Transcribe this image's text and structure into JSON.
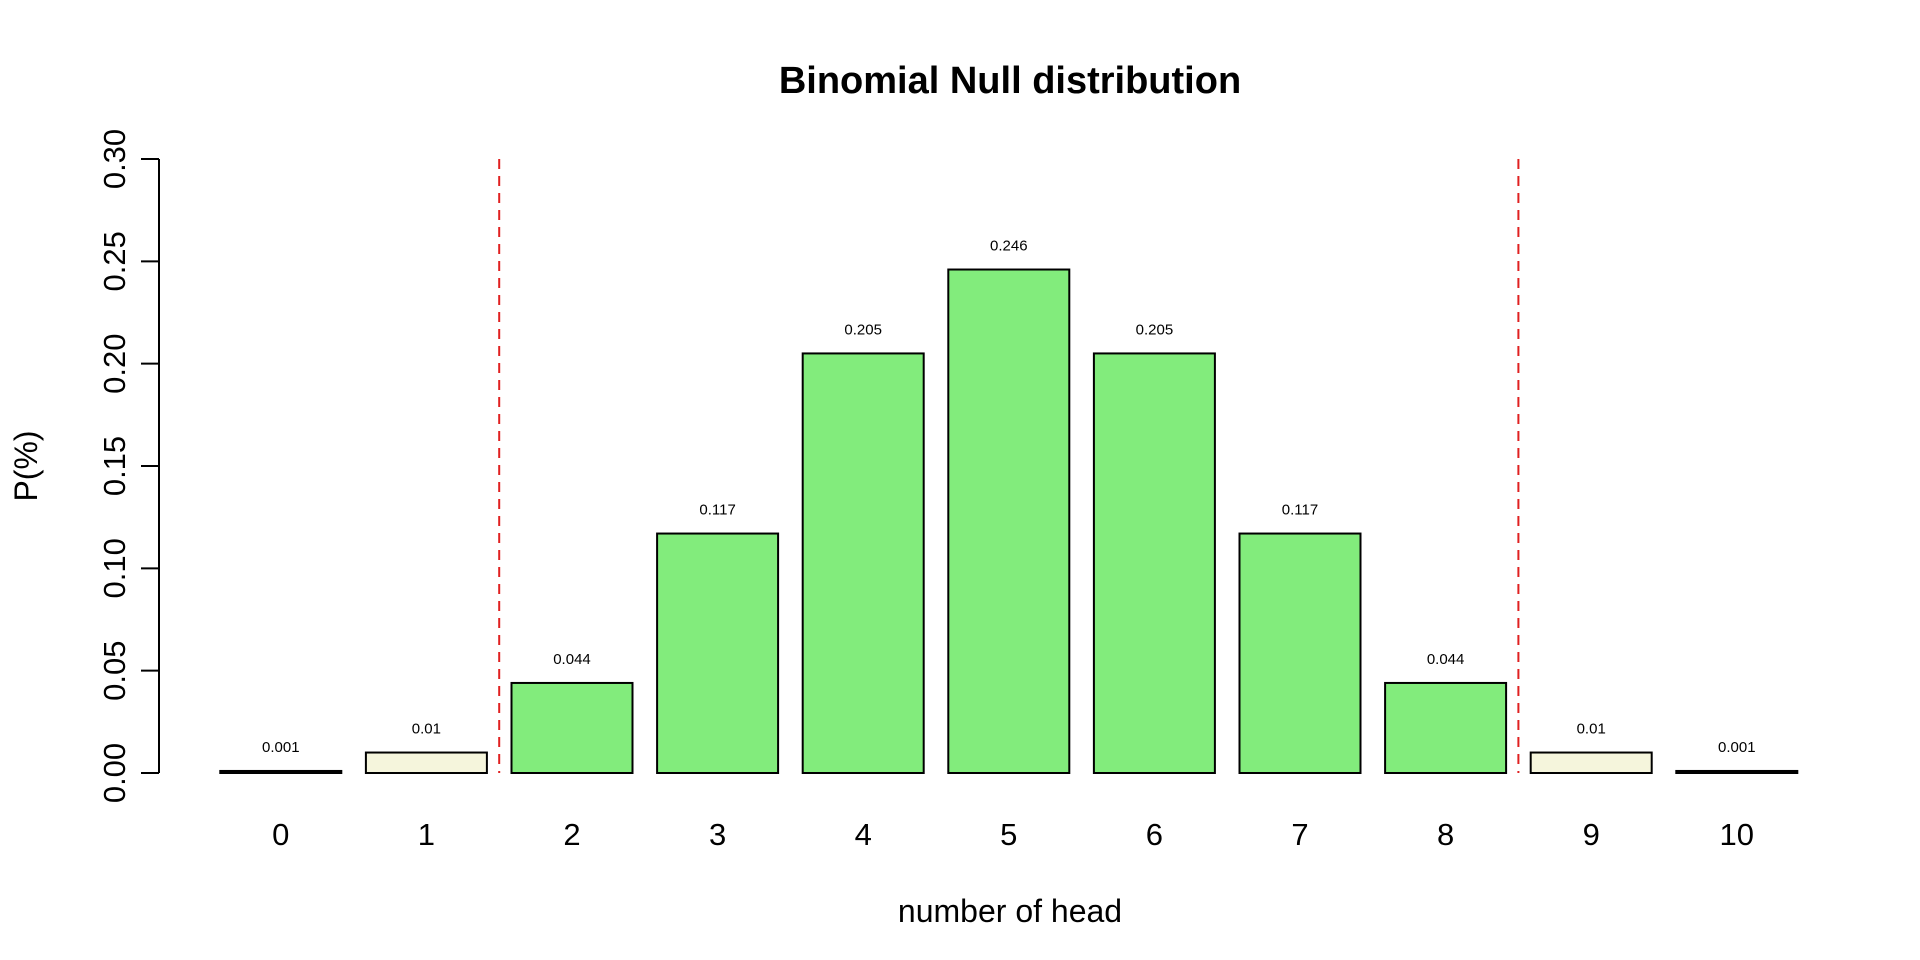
{
  "chart_data": {
    "type": "bar",
    "title": "Binomial Null distribution",
    "xlabel": "number of head",
    "ylabel": "P(%)",
    "categories": [
      "0",
      "1",
      "2",
      "3",
      "4",
      "5",
      "6",
      "7",
      "8",
      "9",
      "10"
    ],
    "values": [
      0.001,
      0.01,
      0.044,
      0.117,
      0.205,
      0.246,
      0.205,
      0.117,
      0.044,
      0.01,
      0.001
    ],
    "value_labels": [
      "0.001",
      "0.01",
      "0.044",
      "0.117",
      "0.205",
      "0.246",
      "0.205",
      "0.117",
      "0.044",
      "0.01",
      "0.001"
    ],
    "bar_colors": [
      "#000000",
      "#f5f5dc",
      "#82ec7c",
      "#82ec7c",
      "#82ec7c",
      "#82ec7c",
      "#82ec7c",
      "#82ec7c",
      "#82ec7c",
      "#f5f5dc",
      "#000000"
    ],
    "ylim": [
      0,
      0.3
    ],
    "yticks": [
      "0.00",
      "0.05",
      "0.10",
      "0.15",
      "0.20",
      "0.25",
      "0.30"
    ],
    "critical_lines": {
      "color": "#e02020",
      "style": "dashed",
      "positions": [
        1.5,
        8.5
      ]
    },
    "grid": false,
    "legend": "none"
  }
}
